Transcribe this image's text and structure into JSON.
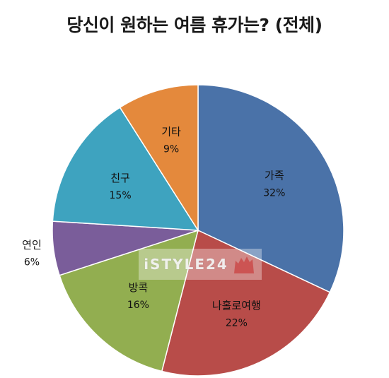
{
  "chart_data": {
    "type": "pie",
    "title": "당신이 원하는 여름 휴가는? (전체)",
    "slices": [
      {
        "label": "가족",
        "value": 32,
        "value_label": "32%",
        "color": "#4a72a8"
      },
      {
        "label": "나홀로여행",
        "value": 22,
        "value_label": "22%",
        "color": "#b84c49"
      },
      {
        "label": "방콕",
        "value": 16,
        "value_label": "16%",
        "color": "#92ae50"
      },
      {
        "label": "연인",
        "value": 6,
        "value_label": "6%",
        "color": "#7a5d9a"
      },
      {
        "label": "친구",
        "value": 15,
        "value_label": "15%",
        "color": "#3ea3bf"
      },
      {
        "label": "기타",
        "value": 9,
        "value_label": "9%",
        "color": "#e4893c"
      }
    ],
    "legend": "none"
  },
  "watermark": {
    "text": "iSTYLE24"
  }
}
